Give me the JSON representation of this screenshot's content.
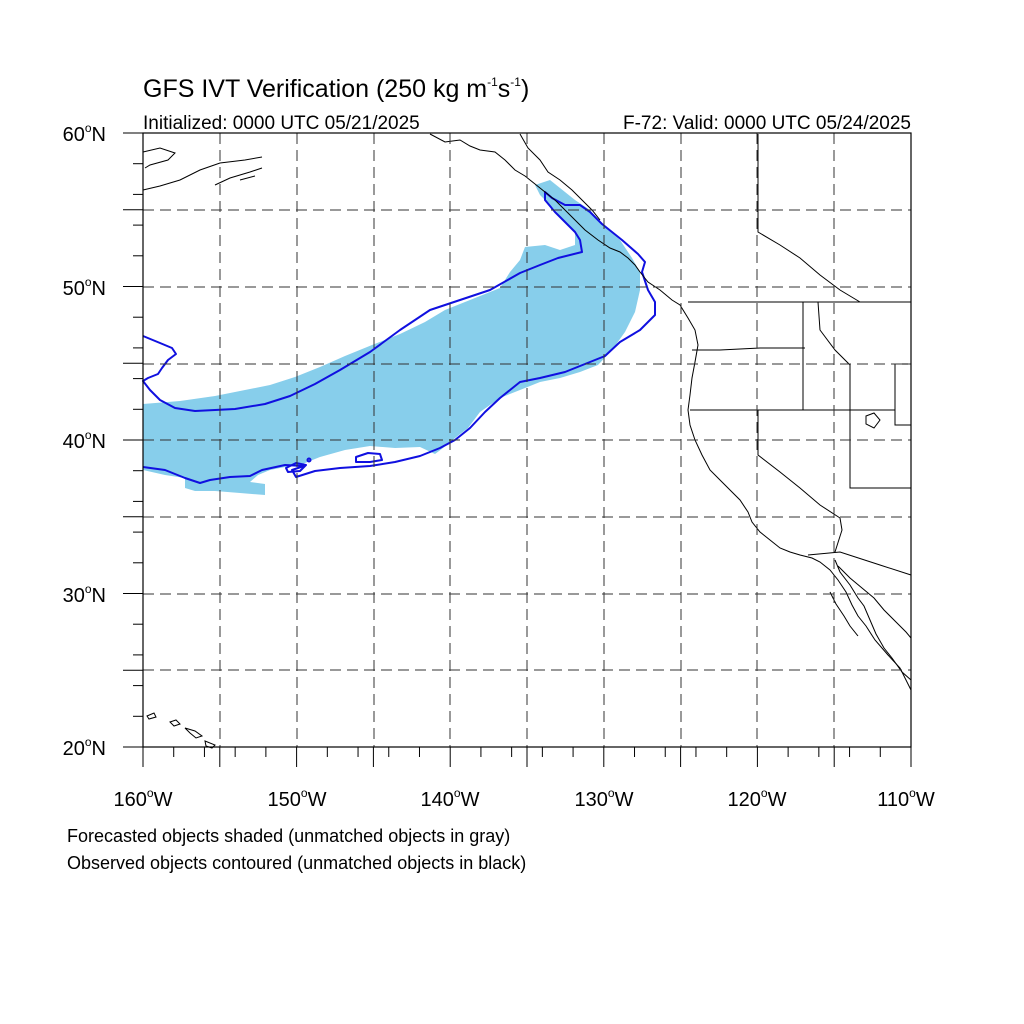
{
  "title_main": "GFS IVT Verification (250 kg m",
  "title_unit_exp1": "-1",
  "title_mid": "s",
  "title_unit_exp2": "-1",
  "title_close": ")",
  "initialized": "Initialized: 0000 UTC 05/21/2025",
  "valid": "F-72: Valid: 0000 UTC 05/24/2025",
  "lat_labels": [
    {
      "num": "60",
      "hem": "N"
    },
    {
      "num": "50",
      "hem": "N"
    },
    {
      "num": "40",
      "hem": "N"
    },
    {
      "num": "30",
      "hem": "N"
    },
    {
      "num": "20",
      "hem": "N"
    }
  ],
  "lon_labels": [
    {
      "num": "160",
      "hem": "W"
    },
    {
      "num": "150",
      "hem": "W"
    },
    {
      "num": "140",
      "hem": "W"
    },
    {
      "num": "130",
      "hem": "W"
    },
    {
      "num": "120",
      "hem": "W"
    },
    {
      "num": "110",
      "hem": "W"
    }
  ],
  "degree_symbol": "o",
  "caption_forecast": "Forecasted objects shaded (unmatched objects in gray)",
  "caption_observed": "Observed objects contoured (unmatched objects in black)",
  "colors": {
    "forecast_fill": "#87ceeb",
    "observed_contour": "#1010e0"
  }
}
